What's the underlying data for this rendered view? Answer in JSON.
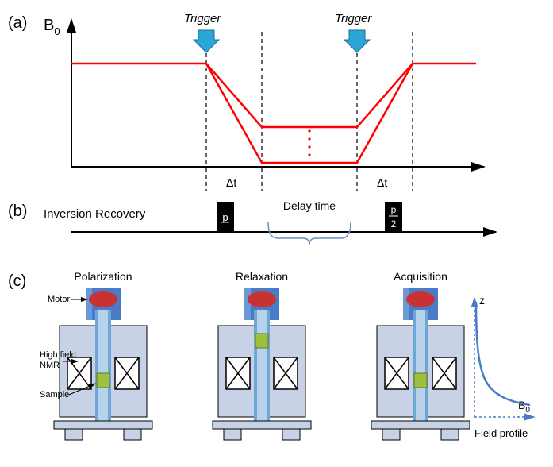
{
  "panel_labels": {
    "a": "(a)",
    "b": "(b)",
    "c": "(c)"
  },
  "panel_a": {
    "ylabel": "B",
    "ylabel_sub": "0",
    "trigger_label": "Trigger",
    "delta_t_label": "Δt",
    "axis_color": "#000000",
    "line_color": "#ff0000",
    "dash_color": "#000000",
    "arrow_color": "#2aa7d6",
    "arrow_stroke": "#1e6b99",
    "dots_color": "#ff0000",
    "x_range": [
      50,
      560
    ],
    "y_range": [
      20,
      200
    ],
    "baseline_y": 70,
    "dash_x": [
      220,
      290,
      410,
      480
    ],
    "mid_y": 150,
    "low_y": 195,
    "trigger_x": [
      220,
      410
    ],
    "dots_x": 350,
    "dots_y_start": 155,
    "dots_y_end": 185
  },
  "panel_b": {
    "label": "Inversion Recovery",
    "pulse1_label": "p",
    "pulse2_top": "p",
    "pulse2_bot": "2",
    "delay_label": "Delay time",
    "axis_color": "#000000",
    "pulse_fill": "#000000",
    "brace_color": "#6f8fbf",
    "pulse1_x": 233,
    "pulse2_x": 445,
    "pulse_w": 22,
    "pulse_h": 38,
    "axis_y": 40,
    "brace_x1": 298,
    "brace_x2": 402
  },
  "panel_c": {
    "titles": [
      "Polarization",
      "Relaxation",
      "Acquisition"
    ],
    "labels": {
      "motor": "Motor",
      "nmr_top": "High field",
      "nmr_bot": "NMR",
      "sample": "Sample"
    },
    "z_label": "z",
    "b0_label": "B",
    "b0_sub": "0",
    "profile_label": "Field profile",
    "colors": {
      "motor_body": "#4a7bc8",
      "motor_oval": "#c83232",
      "magnet_outer": "#c8d2e6",
      "tube": "#6ea6d6",
      "sample": "#9fbf3f",
      "coil_stroke": "#000000",
      "arrow_stroke": "#000000",
      "profile_color": "#4a7bc8",
      "profile_dash": "#4a7bc8"
    },
    "positions_x": [
      130,
      330,
      530
    ],
    "sample_y": [
      135,
      85,
      135
    ]
  },
  "fonts": {
    "panel_label_size": 20,
    "axis_label_size": 20,
    "sub_size": 13,
    "trigger_size": 15,
    "small_size": 13,
    "body_size": 14,
    "tiny_size": 11
  }
}
